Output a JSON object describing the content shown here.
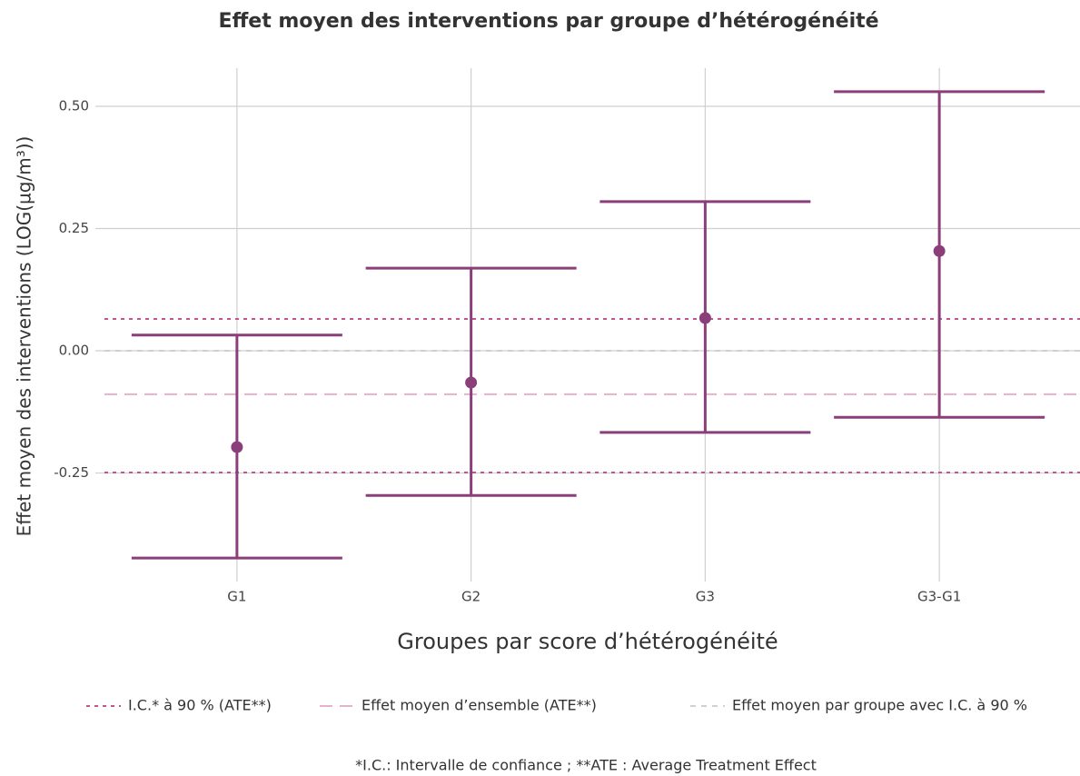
{
  "chart_data": {
    "type": "errorbar",
    "title": "Effet moyen des interventions par groupe d’hétérogénéité",
    "x_label": "Groupes par score d’hétérogénéité",
    "y_label": "Effet moyen des interventions (LOG(µg/m³))",
    "footnote": "*I.C.: Intervalle de confiance ; **ATE : Average Treatment Effect",
    "categories": [
      "G1",
      "G2",
      "G3",
      "G3-G1"
    ],
    "values": [
      -0.197,
      -0.065,
      0.067,
      0.204
    ],
    "lower": [
      -0.424,
      -0.296,
      -0.167,
      -0.136
    ],
    "upper": [
      0.032,
      0.169,
      0.305,
      0.53
    ],
    "color": "#8b3f7a",
    "reference_lines": [
      {
        "name": "I.C.* à 90 % (ATE**)",
        "color": "#c2558c",
        "dash": "dotted",
        "values": [
          0.065,
          -0.249
        ]
      },
      {
        "name": "Effet moyen d’ensemble (ATE**)",
        "color": "#e3b3cd",
        "dash": "long",
        "values": [
          -0.089
        ]
      },
      {
        "name": "Effet moyen par groupe avec I.C. à 90 %",
        "color": "#cfcfd6",
        "dash": "short",
        "values": [
          0
        ]
      }
    ],
    "ylim": [
      -0.472,
      0.578
    ],
    "yticks": [
      {
        "value": 0.5,
        "label": "0.50"
      },
      0.25,
      {
        "value": 0,
        "label": "0.00"
      },
      -0.25
    ],
    "grid": true
  }
}
